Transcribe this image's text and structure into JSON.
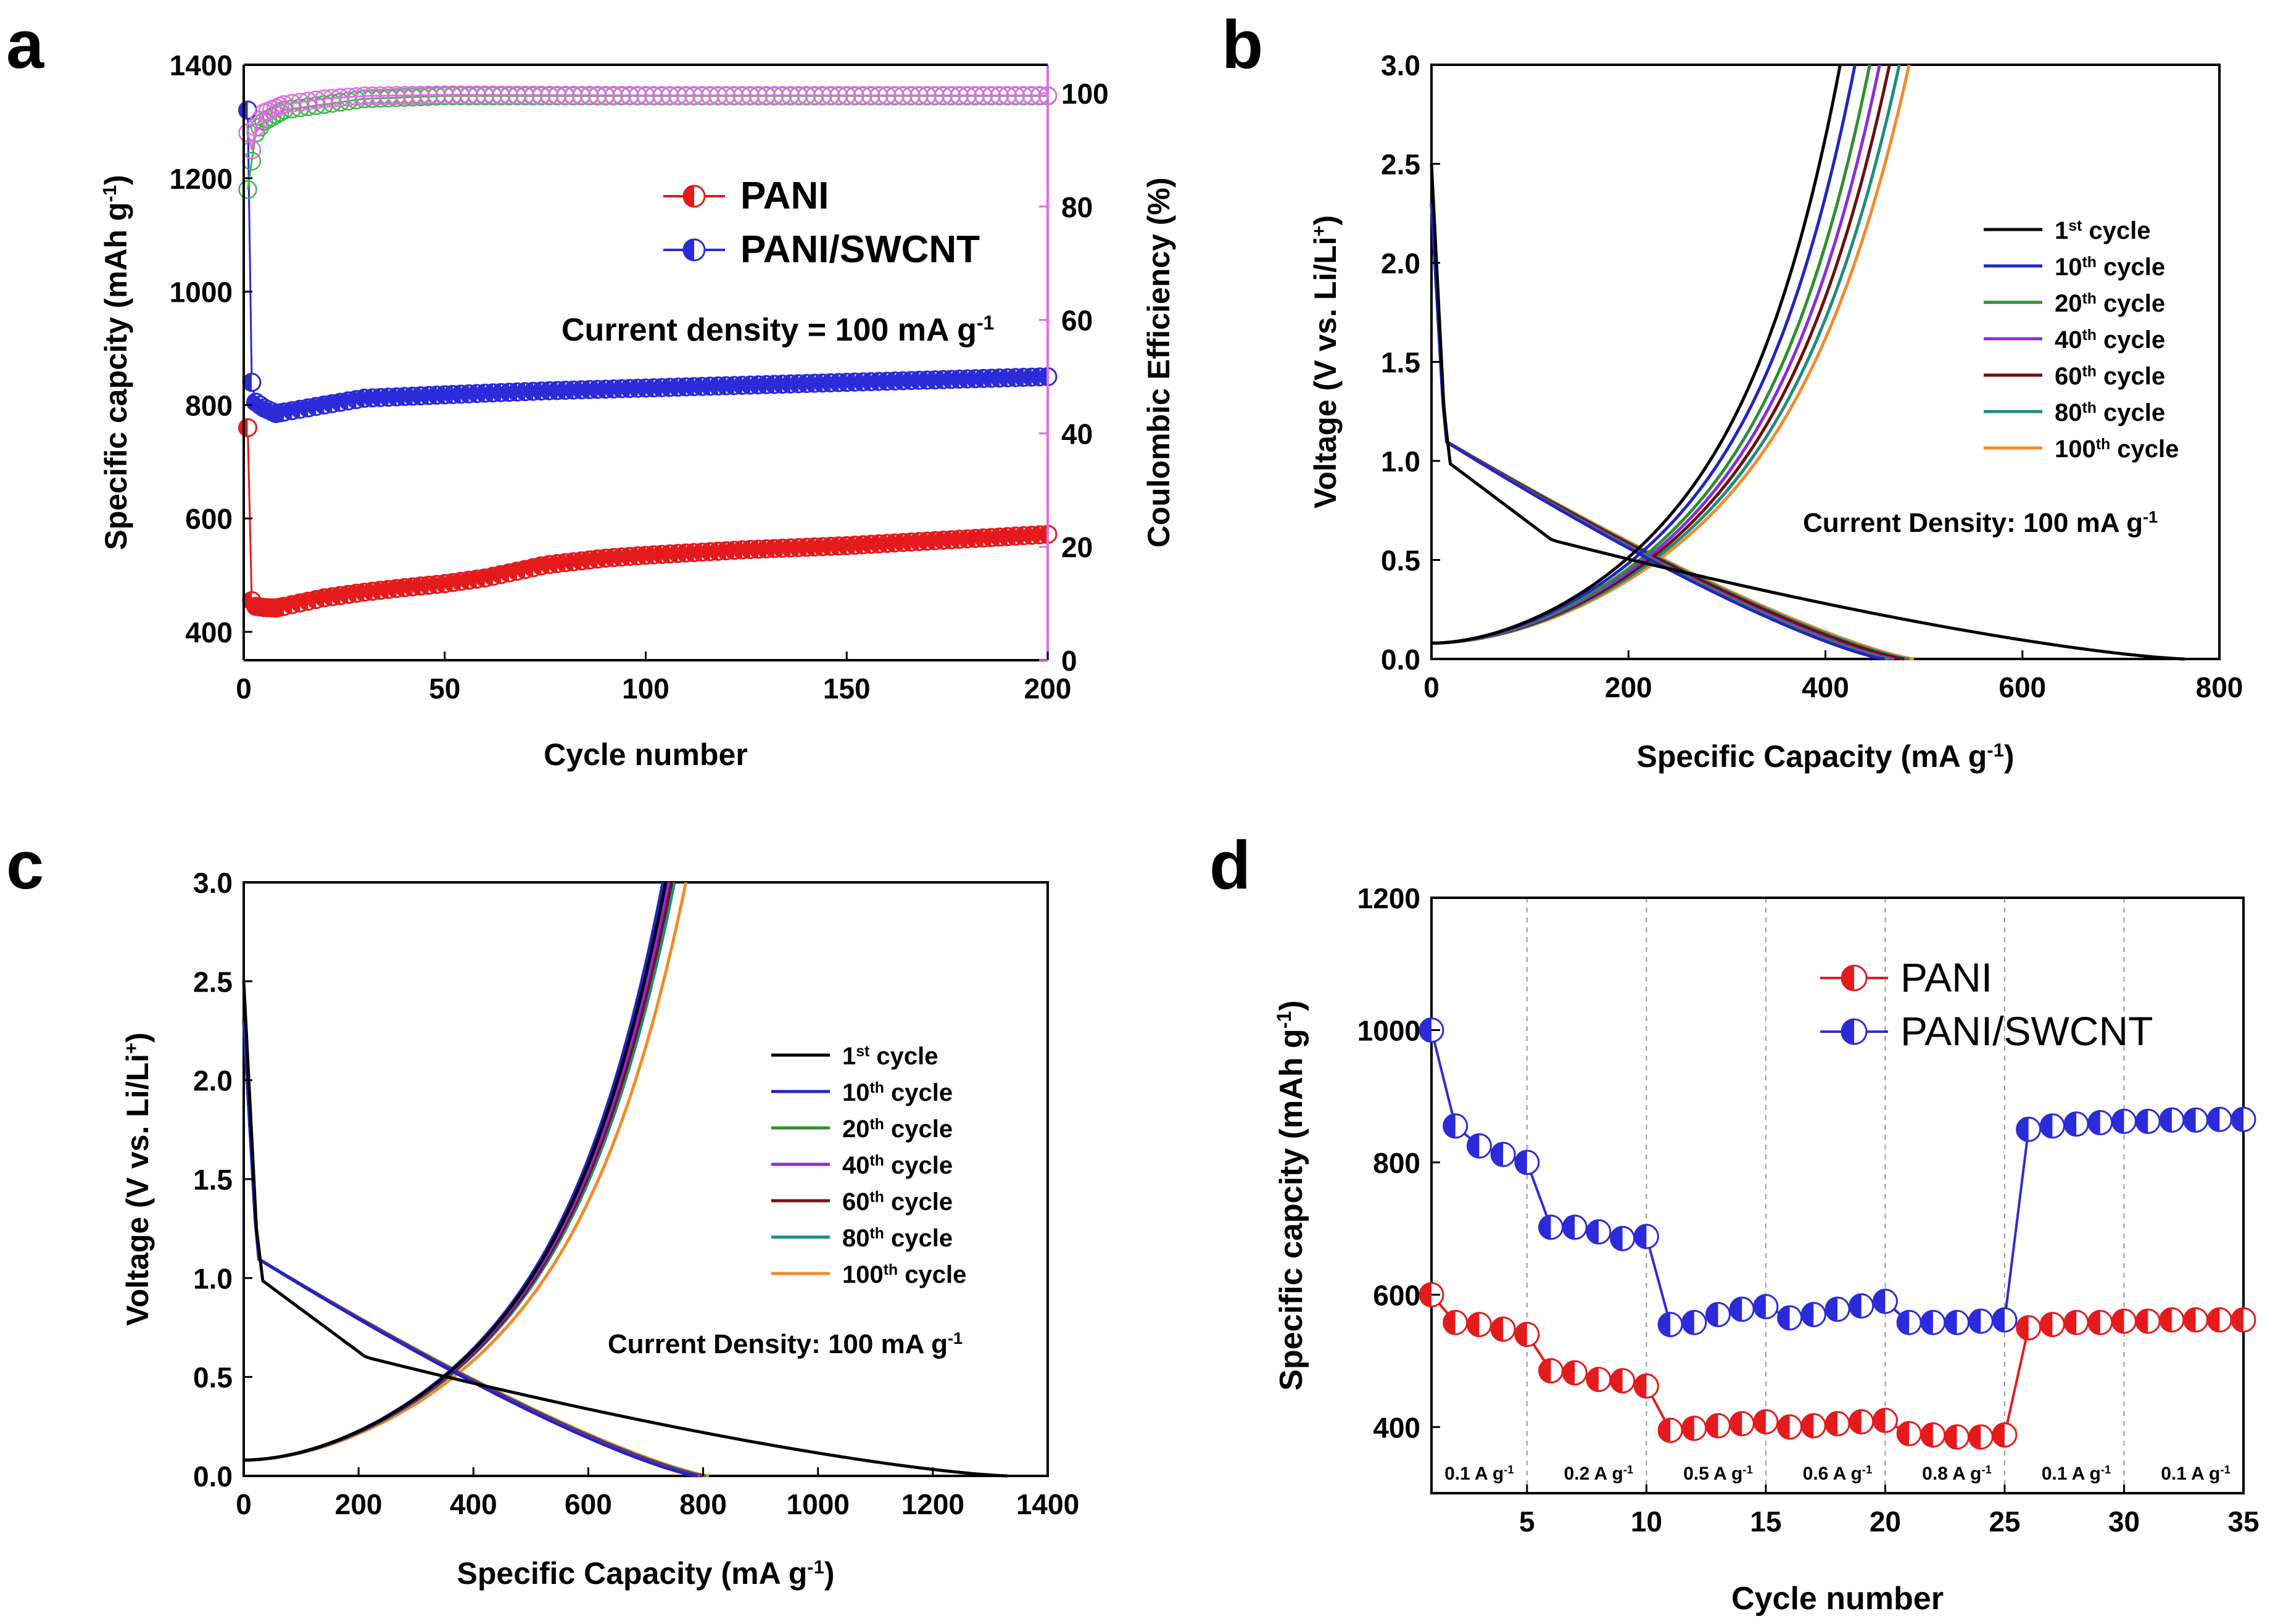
{
  "chart_data": [
    {
      "panel": "a",
      "type": "scatter",
      "xlabel": "Cycle number",
      "ylabel": "Specific capcity (mAh g",
      "ylabel_sup": "-1",
      "ylabel_end": ")",
      "y2label": "Coulombic Efficiency (%)",
      "xlim": [
        0,
        200
      ],
      "ylim": [
        350,
        1400
      ],
      "y2lim": [
        0,
        105
      ],
      "xticks": [
        "0",
        "50",
        "100",
        "150",
        "200"
      ],
      "yticks": [
        "400",
        "600",
        "800",
        "1000",
        "1200",
        "1400"
      ],
      "y2ticks": [
        "0",
        "20",
        "40",
        "60",
        "80",
        "100"
      ],
      "annotation": "Current density = 100 mA g",
      "annotation_sup": "-1",
      "legend": [
        "PANI",
        "PANI/SWCNT"
      ],
      "series": [
        {
          "name": "PANI",
          "color": "#e41a1c",
          "axis": "left",
          "x": [
            1,
            2,
            3,
            5,
            8,
            12,
            20,
            30,
            40,
            50,
            60,
            70,
            75,
            90,
            100,
            125,
            150,
            175,
            200
          ],
          "y": [
            760,
            455,
            445,
            443,
            442,
            448,
            460,
            470,
            478,
            485,
            495,
            510,
            518,
            530,
            535,
            545,
            552,
            562,
            572
          ]
        },
        {
          "name": "PANI/SWCNT",
          "color": "#2b2bd9",
          "axis": "left",
          "x": [
            1,
            2,
            3,
            5,
            8,
            12,
            20,
            30,
            50,
            75,
            100,
            125,
            150,
            175,
            200
          ],
          "y": [
            1320,
            840,
            805,
            795,
            785,
            790,
            800,
            812,
            818,
            825,
            830,
            835,
            840,
            845,
            850
          ]
        },
        {
          "name": "PANI CE",
          "color": "#3cb843",
          "axis": "right",
          "x": [
            1,
            2,
            3,
            5,
            10,
            20,
            30,
            50,
            100,
            150,
            200
          ],
          "y": [
            83,
            88,
            93,
            95,
            97,
            98,
            99,
            99.5,
            99.5,
            99.5,
            99.5
          ]
        },
        {
          "name": "PANI/SWCNT CE",
          "color": "#e36be3",
          "axis": "right",
          "x": [
            1,
            2,
            3,
            5,
            10,
            20,
            30,
            50,
            100,
            150,
            200
          ],
          "y": [
            93,
            90,
            94,
            96.5,
            98,
            99,
            99.5,
            99.7,
            99.6,
            99.6,
            99.6
          ]
        }
      ]
    },
    {
      "panel": "b",
      "type": "line",
      "xlabel": "Specific Capacity (mA g",
      "xlabel_sup": "-1",
      "xlabel_end": ")",
      "ylabel": "Voltage (V vs. Li/Li",
      "ylabel_sup": "+",
      "ylabel_end": ")",
      "xlim": [
        0,
        800
      ],
      "ylim": [
        0,
        3.0
      ],
      "xticks": [
        "0",
        "200",
        "400",
        "600",
        "800"
      ],
      "yticks": [
        "0.0",
        "0.5",
        "1.0",
        "1.5",
        "2.0",
        "2.5",
        "3.0"
      ],
      "annotation": "Current Density: 100 mA g",
      "annotation_sup": "-1",
      "legend": [
        {
          "n": "1",
          "s": "st",
          "t": " cycle",
          "color": "#000000"
        },
        {
          "n": "10",
          "s": "th",
          "t": " cycle",
          "color": "#2323c8"
        },
        {
          "n": "20",
          "s": "th",
          "t": " cycle",
          "color": "#2e8f2e"
        },
        {
          "n": "40",
          "s": "th",
          "t": " cycle",
          "color": "#8a2be2"
        },
        {
          "n": "60",
          "s": "th",
          "t": " cycle",
          "color": "#6b0f0f"
        },
        {
          "n": "80",
          "s": "th",
          "t": " cycle",
          "color": "#1e8c7e"
        },
        {
          "n": "100",
          "s": "th",
          "t": " cycle",
          "color": "#f08c2a"
        }
      ],
      "discharge_capacity": [
        765,
        460,
        465,
        470,
        480,
        485,
        490
      ],
      "charge_capacity": [
        415,
        430,
        445,
        455,
        465,
        475,
        485
      ]
    },
    {
      "panel": "c",
      "type": "line",
      "xlabel": "Specific Capacity (mA g",
      "xlabel_sup": "-1",
      "xlabel_end": ")",
      "ylabel": "Voltage (V vs. Li/Li",
      "ylabel_sup": "+",
      "ylabel_end": ")",
      "xlim": [
        0,
        1400
      ],
      "ylim": [
        0,
        3.0
      ],
      "xticks": [
        "0",
        "200",
        "400",
        "600",
        "800",
        "1000",
        "1200",
        "1400"
      ],
      "yticks": [
        "0.0",
        "0.5",
        "1.0",
        "1.5",
        "2.0",
        "2.5",
        "3.0"
      ],
      "annotation": "Current Density: 100 mA g",
      "annotation_sup": "-1",
      "legend": [
        {
          "n": "1",
          "s": "st",
          "t": " cycle",
          "color": "#000000"
        },
        {
          "n": "10",
          "s": "th",
          "t": " cycle",
          "color": "#2323c8"
        },
        {
          "n": "20",
          "s": "th",
          "t": " cycle",
          "color": "#2e8f2e"
        },
        {
          "n": "40",
          "s": "th",
          "t": " cycle",
          "color": "#8a2be2"
        },
        {
          "n": "60",
          "s": "th",
          "t": " cycle",
          "color": "#7a1010"
        },
        {
          "n": "80",
          "s": "th",
          "t": " cycle",
          "color": "#1e8c7e"
        },
        {
          "n": "100",
          "s": "th",
          "t": " cycle",
          "color": "#f08c2a"
        }
      ],
      "discharge_capacity": [
        1330,
        790,
        790,
        795,
        800,
        805,
        810
      ],
      "charge_capacity": [
        735,
        730,
        730,
        740,
        745,
        750,
        770
      ]
    },
    {
      "panel": "d",
      "type": "scatter",
      "xlabel": "Cycle number",
      "ylabel": "Specific capcity (mAh g",
      "ylabel_sup": "-1",
      "ylabel_end": ")",
      "xlim": [
        1,
        35
      ],
      "ylim": [
        300,
        1200
      ],
      "xticks": [
        "5",
        "10",
        "15",
        "20",
        "25",
        "30",
        "35"
      ],
      "yticks": [
        "400",
        "600",
        "800",
        "1000",
        "1200"
      ],
      "rate_labels": [
        "0.1 A g",
        "0.2 A g",
        "0.5 A g",
        "0.6 A g",
        "0.8 A g",
        "0.1 A g",
        "0.1 A g"
      ],
      "rate_sup": "-1",
      "legend": [
        "PANI",
        "PANI/SWCNT"
      ],
      "series": [
        {
          "name": "PANI",
          "color": "#e41a1c",
          "x": [
            1,
            2,
            3,
            4,
            5,
            6,
            7,
            8,
            9,
            10,
            11,
            12,
            13,
            14,
            15,
            16,
            17,
            18,
            19,
            20,
            21,
            22,
            23,
            24,
            25,
            26,
            27,
            28,
            29,
            30,
            31,
            32,
            33,
            34,
            35
          ],
          "y": [
            600,
            558,
            555,
            548,
            540,
            485,
            482,
            472,
            470,
            462,
            395,
            398,
            402,
            405,
            408,
            400,
            402,
            405,
            408,
            410,
            390,
            388,
            385,
            385,
            388,
            550,
            555,
            558,
            558,
            560,
            560,
            562,
            562,
            562,
            562
          ]
        },
        {
          "name": "PANI/SWCNT",
          "color": "#2b2bd9",
          "x": [
            1,
            2,
            3,
            4,
            5,
            6,
            7,
            8,
            9,
            10,
            11,
            12,
            13,
            14,
            15,
            16,
            17,
            18,
            19,
            20,
            21,
            22,
            23,
            24,
            25,
            26,
            27,
            28,
            29,
            30,
            31,
            32,
            33,
            34,
            35
          ],
          "y": [
            1000,
            855,
            825,
            812,
            800,
            702,
            702,
            695,
            685,
            688,
            555,
            558,
            570,
            578,
            582,
            565,
            570,
            578,
            583,
            590,
            558,
            558,
            558,
            560,
            562,
            850,
            855,
            858,
            860,
            862,
            862,
            864,
            864,
            865,
            865
          ]
        }
      ]
    }
  ],
  "panel_labels": [
    "a",
    "b",
    "c",
    "d"
  ]
}
